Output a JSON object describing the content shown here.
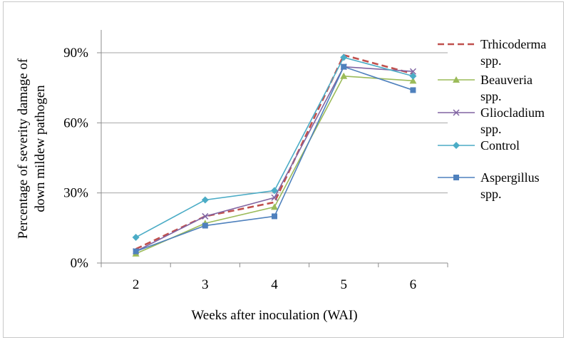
{
  "chart_data": {
    "type": "line",
    "xlabel": "Weeks after inoculation (WAI)",
    "ylabel_lines": [
      "Percentage of severity damage of",
      "down mildew pathogen"
    ],
    "categories": [
      "2",
      "3",
      "4",
      "5",
      "6"
    ],
    "y_ticks": [
      "0%",
      "30%",
      "60%",
      "90%"
    ],
    "ylim": [
      0,
      90
    ],
    "grid": true,
    "legend_position": "right",
    "series": [
      {
        "name_lines": [
          "Trhicoderma",
          "spp."
        ],
        "values": [
          6,
          20,
          26,
          89,
          81
        ],
        "color": "#c0504d",
        "dashed": true,
        "marker": "none"
      },
      {
        "name_lines": [
          "Beauveria",
          "spp."
        ],
        "values": [
          4,
          17,
          24,
          80,
          78
        ],
        "color": "#9bbb59",
        "dashed": false,
        "marker": "triangle"
      },
      {
        "name_lines": [
          "Gliocladium",
          "spp."
        ],
        "values": [
          5,
          20,
          28,
          84,
          82
        ],
        "color": "#8064a2",
        "dashed": false,
        "marker": "x"
      },
      {
        "name_lines": [
          "Control"
        ],
        "values": [
          11,
          27,
          31,
          88,
          80
        ],
        "color": "#4bacc6",
        "dashed": false,
        "marker": "diamond"
      },
      {
        "name_lines": [
          "Aspergillus",
          "spp."
        ],
        "values": [
          5,
          16,
          20,
          84,
          74
        ],
        "color": "#4f81bd",
        "dashed": false,
        "marker": "square"
      }
    ]
  }
}
